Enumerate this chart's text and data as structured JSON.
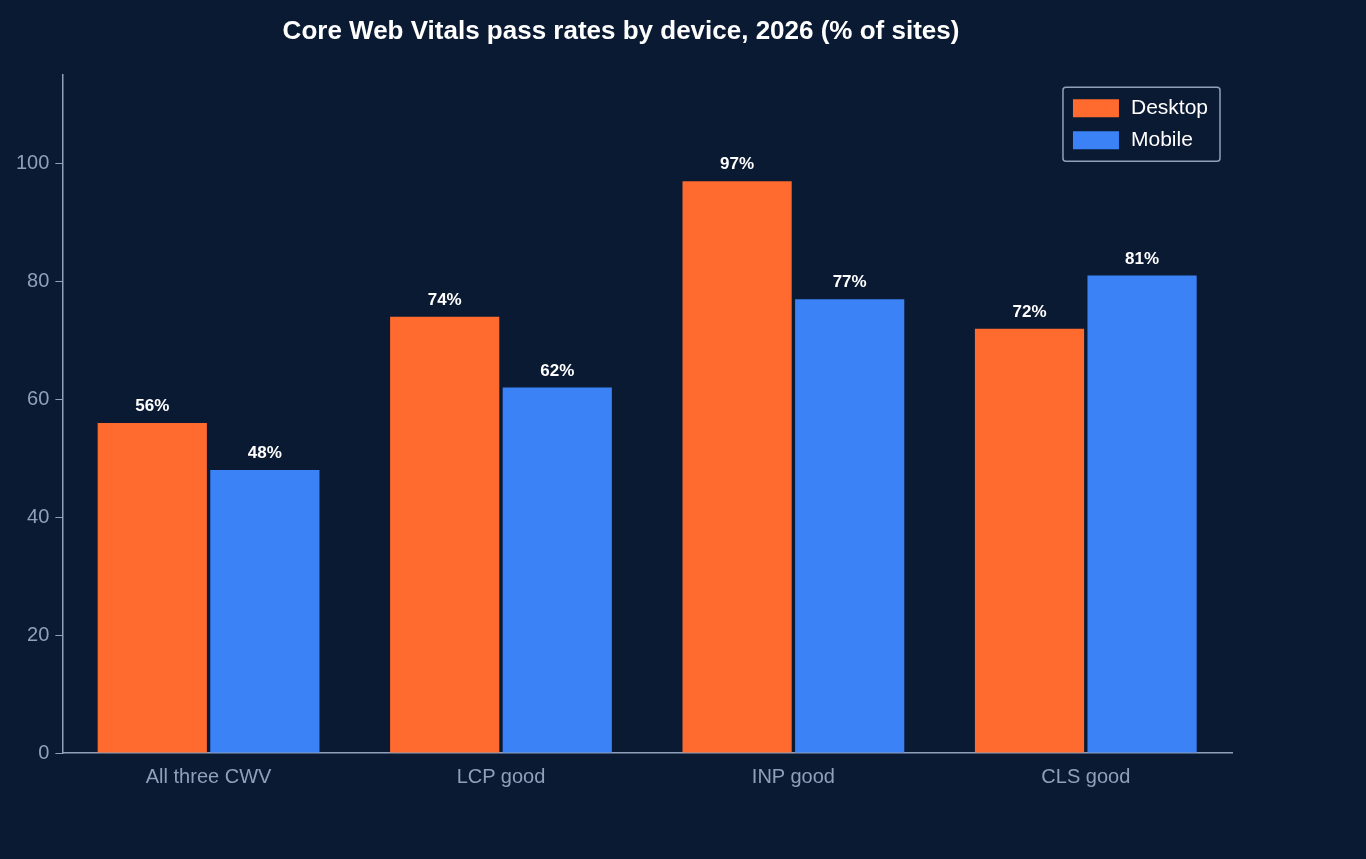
{
  "chart_data": {
    "type": "bar",
    "title": "Core Web Vitals pass rates by device, 2026 (% of sites)",
    "categories": [
      "All three CWV",
      "LCP good",
      "INP good",
      "CLS good"
    ],
    "series": [
      {
        "name": "Desktop",
        "color": "#ff6b2f",
        "values": [
          56,
          74,
          97,
          72
        ],
        "value_labels": [
          "56%",
          "74%",
          "97%",
          "72%"
        ]
      },
      {
        "name": "Mobile",
        "color": "#3b82f6",
        "values": [
          48,
          62,
          77,
          81
        ],
        "value_labels": [
          "48%",
          "62%",
          "77%",
          "81%"
        ]
      }
    ],
    "ylim": [
      0,
      115
    ],
    "yticks": [
      0,
      20,
      40,
      60,
      80,
      100
    ],
    "grid": false,
    "legend": "top right"
  }
}
